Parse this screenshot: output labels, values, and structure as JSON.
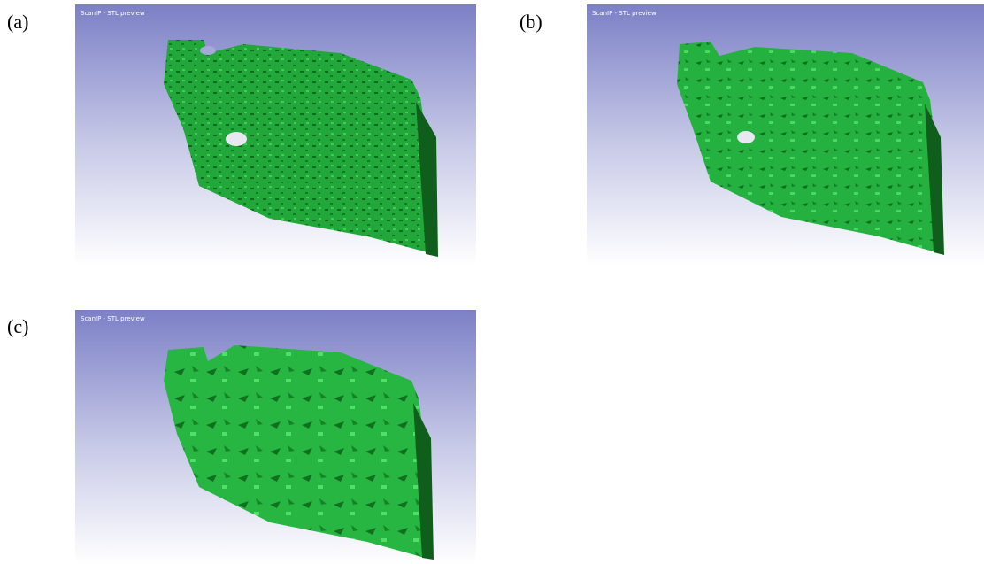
{
  "panels": [
    {
      "label": "(a)",
      "caption": "ScanIP - STL preview"
    },
    {
      "label": "(b)",
      "caption": "ScanIP - STL preview"
    },
    {
      "label": "(c)",
      "caption": "ScanIP - STL preview"
    }
  ]
}
